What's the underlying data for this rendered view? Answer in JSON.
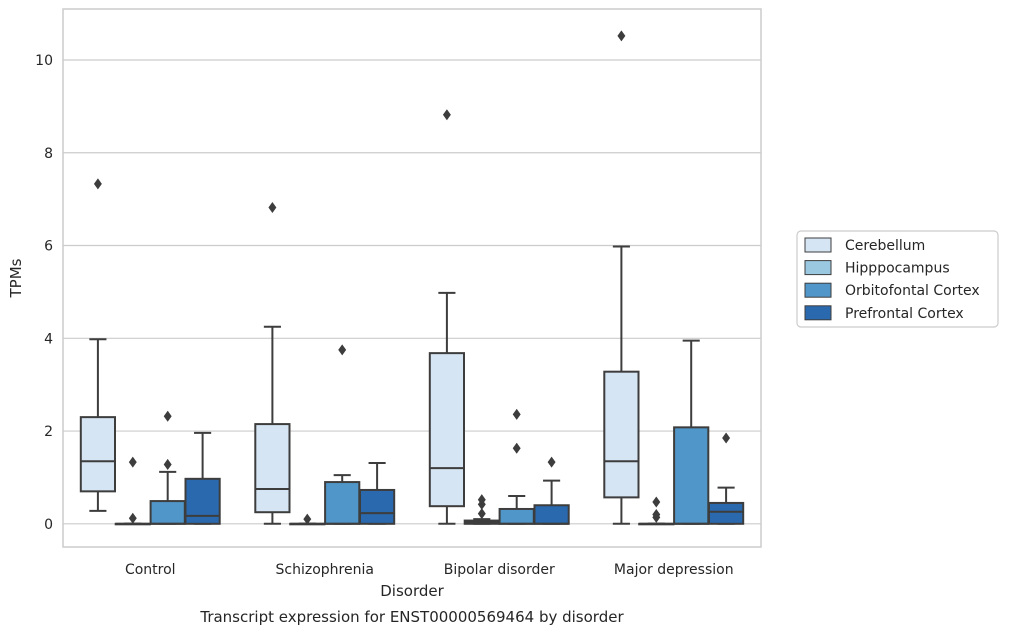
{
  "chart_data": {
    "type": "box",
    "caption": "Transcript expression for ENST00000569464 by disorder",
    "xlabel": "Disorder",
    "ylabel": "TPMs",
    "ylim": [
      -0.5,
      11.1
    ],
    "yticks": [
      0,
      2,
      4,
      6,
      8,
      10
    ],
    "grid": "horizontal",
    "legend_position": "right",
    "categories": [
      "Control",
      "Schizophrenia",
      "Bipolar disorder",
      "Major depression"
    ],
    "series": [
      {
        "name": "Cerebellum",
        "color": "#d6e5f3",
        "boxes": [
          {
            "min": 0.28,
            "q1": 0.7,
            "median": 1.35,
            "q3": 2.3,
            "max": 3.98,
            "outliers": [
              7.33
            ]
          },
          {
            "min": 0.0,
            "q1": 0.25,
            "median": 0.75,
            "q3": 2.15,
            "max": 4.25,
            "outliers": [
              6.82
            ]
          },
          {
            "min": 0.0,
            "q1": 0.38,
            "median": 1.2,
            "q3": 3.68,
            "max": 4.98,
            "outliers": [
              8.82
            ]
          },
          {
            "min": 0.0,
            "q1": 0.57,
            "median": 1.35,
            "q3": 3.28,
            "max": 5.98,
            "outliers": [
              10.52
            ]
          }
        ]
      },
      {
        "name": "Hipppocampus",
        "color": "#9ac8e0",
        "boxes": [
          {
            "min": 0.0,
            "q1": 0.0,
            "median": 0.0,
            "q3": 0.0,
            "max": 0.0,
            "outliers": [
              0.12,
              1.33
            ]
          },
          {
            "min": 0.0,
            "q1": 0.0,
            "median": 0.0,
            "q3": 0.0,
            "max": 0.0,
            "outliers": [
              0.1
            ]
          },
          {
            "min": 0.0,
            "q1": 0.0,
            "median": 0.03,
            "q3": 0.07,
            "max": 0.1,
            "outliers": [
              0.22,
              0.42,
              0.52
            ]
          },
          {
            "min": 0.0,
            "q1": 0.0,
            "median": 0.0,
            "q3": 0.0,
            "max": 0.0,
            "outliers": [
              0.14,
              0.2,
              0.47
            ]
          }
        ]
      },
      {
        "name": "Orbitofontal Cortex",
        "color": "#5096c8",
        "boxes": [
          {
            "min": 0.0,
            "q1": 0.0,
            "median": 0.0,
            "q3": 0.49,
            "max": 1.12,
            "outliers": [
              1.28,
              2.32
            ]
          },
          {
            "min": 0.0,
            "q1": 0.0,
            "median": 0.0,
            "q3": 0.9,
            "max": 1.05,
            "outliers": [
              3.75
            ]
          },
          {
            "min": 0.0,
            "q1": 0.0,
            "median": 0.0,
            "q3": 0.32,
            "max": 0.6,
            "outliers": [
              1.63,
              2.36
            ]
          },
          {
            "min": 0.0,
            "q1": 0.0,
            "median": 0.0,
            "q3": 2.08,
            "max": 3.95,
            "outliers": []
          }
        ]
      },
      {
        "name": "Prefrontal Cortex",
        "color": "#2a69ad",
        "boxes": [
          {
            "min": 0.0,
            "q1": 0.0,
            "median": 0.17,
            "q3": 0.97,
            "max": 1.96,
            "outliers": []
          },
          {
            "min": 0.0,
            "q1": 0.0,
            "median": 0.23,
            "q3": 0.73,
            "max": 1.31,
            "outliers": []
          },
          {
            "min": 0.0,
            "q1": 0.0,
            "median": 0.0,
            "q3": 0.4,
            "max": 0.93,
            "outliers": [
              1.33
            ]
          },
          {
            "min": 0.0,
            "q1": 0.0,
            "median": 0.26,
            "q3": 0.45,
            "max": 0.78,
            "outliers": [
              1.85
            ]
          }
        ]
      }
    ]
  }
}
